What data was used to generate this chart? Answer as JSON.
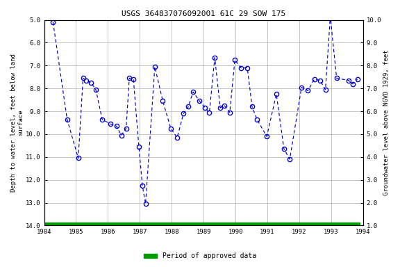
{
  "title": "USGS 364837076092001 61C 29 SOW 175",
  "ylabel_left": "Depth to water level, feet below land\nsurface",
  "ylabel_right": "Groundwater level above NGVD 1929, feet",
  "ylim_left": [
    14.0,
    5.0
  ],
  "ylim_right": [
    1.0,
    10.0
  ],
  "xlim": [
    1984.0,
    1994.0
  ],
  "xticks": [
    1984,
    1985,
    1986,
    1987,
    1988,
    1989,
    1990,
    1991,
    1992,
    1993,
    1994
  ],
  "yticks_left": [
    5.0,
    6.0,
    7.0,
    8.0,
    9.0,
    10.0,
    11.0,
    12.0,
    13.0,
    14.0
  ],
  "yticks_right": [
    1.0,
    2.0,
    3.0,
    4.0,
    5.0,
    6.0,
    7.0,
    8.0,
    9.0,
    10.0
  ],
  "line_color": "#0000cc",
  "marker_edgecolor": "#0000cc",
  "background_color": "#ffffff",
  "grid_color": "#b0b0b0",
  "approved_color": "#009900",
  "approved_xstart": 1984.0,
  "approved_xend": 1993.92,
  "data_x": [
    1984.28,
    1984.72,
    1985.07,
    1985.22,
    1985.32,
    1985.47,
    1985.62,
    1985.82,
    1986.07,
    1986.27,
    1986.42,
    1986.57,
    1986.67,
    1986.8,
    1986.97,
    1987.08,
    1987.18,
    1987.47,
    1987.72,
    1987.97,
    1988.17,
    1988.37,
    1988.52,
    1988.67,
    1988.87,
    1989.05,
    1989.18,
    1989.35,
    1989.52,
    1989.65,
    1989.82,
    1989.98,
    1990.17,
    1990.37,
    1990.52,
    1990.67,
    1990.98,
    1991.28,
    1991.52,
    1991.7,
    1992.07,
    1992.27,
    1992.47,
    1992.65,
    1992.82,
    1992.97,
    1993.17,
    1993.55,
    1993.67,
    1993.82
  ],
  "data_y": [
    5.1,
    9.35,
    11.05,
    7.55,
    7.65,
    7.75,
    8.05,
    9.35,
    9.55,
    9.65,
    10.05,
    9.75,
    7.55,
    7.6,
    10.55,
    12.25,
    13.05,
    7.05,
    8.55,
    9.75,
    10.15,
    9.1,
    8.8,
    8.15,
    8.55,
    8.85,
    9.05,
    6.65,
    8.85,
    8.75,
    9.05,
    6.75,
    7.1,
    7.1,
    8.8,
    9.35,
    10.1,
    8.25,
    10.65,
    11.1,
    7.95,
    8.1,
    7.6,
    7.65,
    8.05,
    4.85,
    7.55,
    7.65,
    7.8,
    7.6
  ],
  "legend_label": "Period of approved data"
}
